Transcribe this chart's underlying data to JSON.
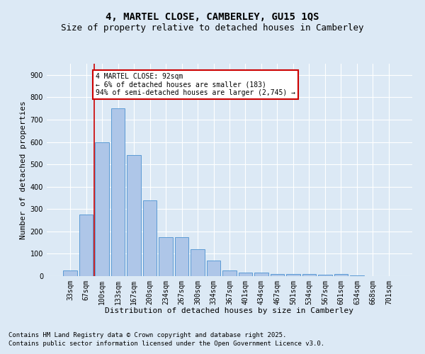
{
  "title1": "4, MARTEL CLOSE, CAMBERLEY, GU15 1QS",
  "title2": "Size of property relative to detached houses in Camberley",
  "xlabel": "Distribution of detached houses by size in Camberley",
  "ylabel": "Number of detached properties",
  "categories": [
    "33sqm",
    "67sqm",
    "100sqm",
    "133sqm",
    "167sqm",
    "200sqm",
    "234sqm",
    "267sqm",
    "300sqm",
    "334sqm",
    "367sqm",
    "401sqm",
    "434sqm",
    "467sqm",
    "501sqm",
    "534sqm",
    "567sqm",
    "601sqm",
    "634sqm",
    "668sqm",
    "701sqm"
  ],
  "values": [
    25,
    275,
    600,
    750,
    540,
    340,
    175,
    175,
    120,
    70,
    25,
    15,
    15,
    10,
    8,
    8,
    5,
    8,
    2,
    0,
    0
  ],
  "bar_color": "#aec6e8",
  "bar_edge_color": "#5b9bd5",
  "vline_x": 1.5,
  "vline_color": "#cc0000",
  "annotation_text": "4 MARTEL CLOSE: 92sqm\n← 6% of detached houses are smaller (183)\n94% of semi-detached houses are larger (2,745) →",
  "annotation_box_color": "#ffffff",
  "annotation_box_edge": "#cc0000",
  "ylim": [
    0,
    950
  ],
  "yticks": [
    0,
    100,
    200,
    300,
    400,
    500,
    600,
    700,
    800,
    900
  ],
  "footnote1": "Contains HM Land Registry data © Crown copyright and database right 2025.",
  "footnote2": "Contains public sector information licensed under the Open Government Licence v3.0.",
  "bg_color": "#dce9f5",
  "plot_bg_color": "#dce9f5",
  "grid_color": "#ffffff",
  "title1_fontsize": 10,
  "title2_fontsize": 9,
  "xlabel_fontsize": 8,
  "ylabel_fontsize": 8,
  "tick_fontsize": 7,
  "annot_fontsize": 7,
  "footnote_fontsize": 6.5
}
